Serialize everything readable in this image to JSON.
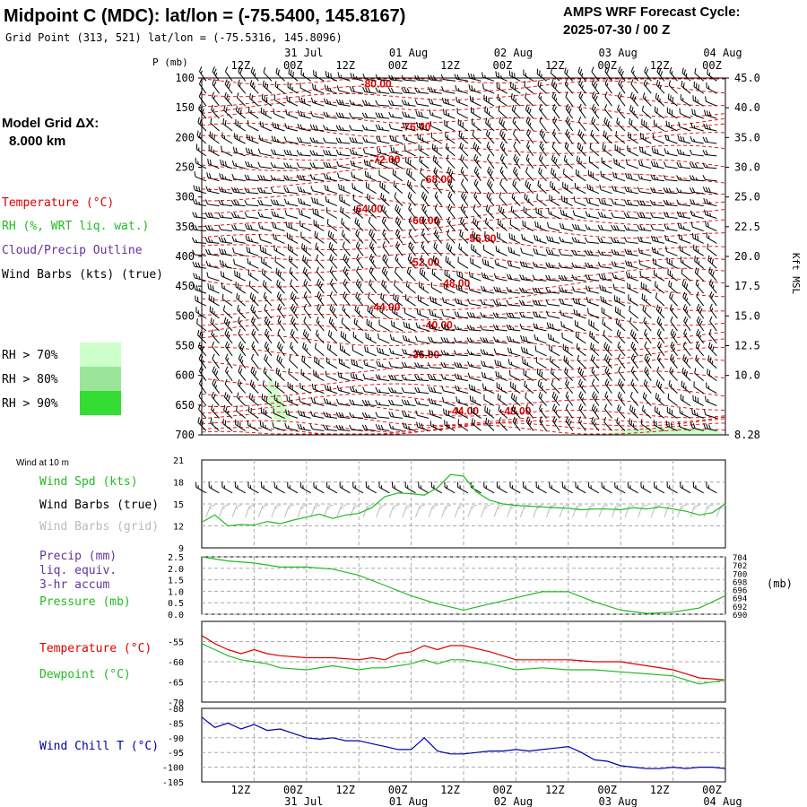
{
  "header": {
    "title": "Midpoint C (MDC):  lat/lon = (-75.5400, 145.8167)",
    "subtitle": "Grid Point (313, 521) lat/lon = (-75.5316, 145.8096)",
    "cycle_label": "AMPS WRF Forecast Cycle:",
    "cycle_value": "2025-07-30 / 00  Z"
  },
  "legend": {
    "model_grid_label": "Model Grid ΔX:",
    "model_grid_value": "8.000 km",
    "temperature": "Temperature (°C)",
    "rh": "RH (%, WRT liq. wat.)",
    "cloud": "Cloud/Precip Outline",
    "wind": "Wind Barbs (kts) (true)",
    "rh_levels": [
      {
        "label": "RH > 70%",
        "color": "#ccffcc"
      },
      {
        "label": "RH > 80%",
        "color": "#99e699"
      },
      {
        "label": "RH > 90%",
        "color": "#33dd33"
      }
    ]
  },
  "colors": {
    "temperature": "#dd0000",
    "dewpoint": "#22bb22",
    "cloud": "#663399",
    "windchill": "#0000aa",
    "grid": "#aaaaaa",
    "barb_grid": "#bbbbbb"
  },
  "time_axis": {
    "hours": [
      0,
      12,
      24,
      36,
      48,
      60,
      72,
      84,
      96,
      108,
      120
    ],
    "tick_labels": [
      "12Z",
      "00Z",
      "12Z",
      "00Z",
      "12Z",
      "00Z",
      "12Z",
      "00Z",
      "12Z",
      "00Z"
    ],
    "tick_hours": [
      12,
      24,
      36,
      48,
      60,
      72,
      84,
      96,
      108,
      120
    ],
    "date_labels": [
      "31 Jul",
      "01 Aug",
      "02 Aug",
      "03 Aug",
      "04 Aug"
    ],
    "date_hours": [
      24,
      48,
      72,
      96,
      120
    ]
  },
  "chart_data": [
    {
      "type": "line",
      "panel": "cross-section",
      "ylabel": "P (mb)",
      "right_label": "Kft MSL",
      "y_ticks": [
        100,
        150,
        200,
        250,
        300,
        350,
        400,
        450,
        500,
        550,
        600,
        650,
        700
      ],
      "ylim": [
        100,
        700
      ],
      "kft_ticks": [
        {
          "p": 100,
          "label": "45.0"
        },
        {
          "p": 150,
          "label": "40.0"
        },
        {
          "p": 200,
          "label": "35.0"
        },
        {
          "p": 250,
          "label": "30.0"
        },
        {
          "p": 300,
          "label": "25.0"
        },
        {
          "p": 350,
          "label": "22.5"
        },
        {
          "p": 400,
          "label": "20.0"
        },
        {
          "p": 450,
          "label": "17.5"
        },
        {
          "p": 500,
          "label": "15.0"
        },
        {
          "p": 550,
          "label": "12.5"
        },
        {
          "p": 600,
          "label": "10.0"
        },
        {
          "p": 700,
          "label": "8.28"
        }
      ],
      "temperature_labels": [
        {
          "text": "-80.00",
          "hour": 40,
          "p": 110
        },
        {
          "text": "-76.00",
          "hour": 49,
          "p": 182
        },
        {
          "text": "-72.00",
          "hour": 42,
          "p": 237
        },
        {
          "text": "-68.00",
          "hour": 54,
          "p": 270
        },
        {
          "text": "-64.00",
          "hour": 38,
          "p": 320
        },
        {
          "text": "-60.00",
          "hour": 51,
          "p": 340
        },
        {
          "text": "-56.00",
          "hour": 64,
          "p": 370
        },
        {
          "text": "-52.00",
          "hour": 51,
          "p": 410
        },
        {
          "text": "-48.00",
          "hour": 58,
          "p": 445
        },
        {
          "text": "-44.00",
          "hour": 42,
          "p": 485
        },
        {
          "text": "-40.00",
          "hour": 54,
          "p": 515
        },
        {
          "text": "-36.00",
          "hour": 51,
          "p": 565
        },
        {
          "text": "-44.00",
          "hour": 60,
          "p": 660
        },
        {
          "text": "-48.00",
          "hour": 72,
          "p": 660
        }
      ]
    },
    {
      "type": "line",
      "panel": "wind",
      "note": "Wind at 10 m",
      "labels": [
        "Wind Spd (kts)",
        "Wind Barbs (true)",
        "Wind Barbs (grid)"
      ],
      "y_ticks": [
        12,
        15,
        18,
        21
      ],
      "ylim": [
        9,
        21
      ],
      "series": [
        {
          "name": "Wind Spd (kts)",
          "x": [
            0,
            3,
            6,
            9,
            12,
            15,
            18,
            21,
            24,
            27,
            30,
            33,
            36,
            39,
            42,
            45,
            48,
            51,
            54,
            57,
            60,
            63,
            66,
            69,
            72,
            75,
            78,
            81,
            84,
            87,
            90,
            93,
            96,
            99,
            102,
            105,
            108,
            111,
            114,
            117,
            120
          ],
          "values": [
            12.5,
            13.5,
            12.0,
            12.2,
            12.1,
            12.6,
            12.3,
            12.8,
            13.2,
            13.6,
            13.0,
            13.5,
            13.7,
            14.5,
            16.0,
            16.5,
            16.4,
            16.2,
            17.2,
            19.0,
            18.8,
            16.6,
            15.5,
            15.0,
            14.8,
            14.7,
            14.6,
            14.5,
            14.4,
            14.2,
            14.3,
            14.3,
            14.2,
            14.5,
            14.3,
            14.6,
            14.3,
            14.0,
            13.5,
            13.8,
            15.0
          ]
        }
      ]
    },
    {
      "type": "line",
      "panel": "precip-pressure",
      "labels": [
        "Precip (mm)",
        "liq. equiv.",
        "3-hr accum",
        "Pressure (mb)"
      ],
      "y_ticks": [
        0.0,
        0.5,
        1.0,
        1.5,
        2.0,
        2.5
      ],
      "ylim": [
        0,
        2.5
      ],
      "right_ticks": [
        690,
        692,
        694,
        696,
        698,
        700,
        702,
        704
      ],
      "right_lim": [
        690,
        704
      ],
      "right_unit": "(mb)",
      "series": [
        {
          "name": "Pressure (mb)",
          "x": [
            0,
            6,
            12,
            18,
            24,
            30,
            36,
            42,
            48,
            54,
            60,
            66,
            72,
            78,
            84,
            90,
            96,
            102,
            108,
            114,
            120
          ],
          "values": [
            704.0,
            703.0,
            702.5,
            701.5,
            701.5,
            701.0,
            699.5,
            697.0,
            694.5,
            692.5,
            691.0,
            692.5,
            694.0,
            695.5,
            695.5,
            693.0,
            691.0,
            690.2,
            690.5,
            691.5,
            694.5
          ]
        }
      ]
    },
    {
      "type": "line",
      "panel": "temperature",
      "labels": [
        "Temperature (°C)",
        "Dewpoint (°C)"
      ],
      "y_ticks": [
        -55,
        -60,
        -65,
        -70
      ],
      "ylim": [
        -70,
        -50
      ],
      "series": [
        {
          "name": "Temperature (°C)",
          "x": [
            0,
            3,
            6,
            9,
            12,
            15,
            18,
            24,
            30,
            36,
            39,
            42,
            45,
            48,
            51,
            54,
            57,
            60,
            66,
            72,
            78,
            84,
            90,
            96,
            102,
            108,
            114,
            120
          ],
          "values": [
            -53.5,
            -55.5,
            -57.0,
            -58.0,
            -57.0,
            -58.0,
            -58.5,
            -59.0,
            -59.0,
            -59.5,
            -59.0,
            -59.5,
            -58.0,
            -57.5,
            -56.0,
            -57.0,
            -56.0,
            -56.0,
            -57.5,
            -59.5,
            -59.5,
            -59.5,
            -60.0,
            -60.0,
            -61.0,
            -62.0,
            -64.0,
            -64.5
          ]
        },
        {
          "name": "Dewpoint (°C)",
          "x": [
            0,
            3,
            6,
            9,
            12,
            15,
            18,
            24,
            30,
            36,
            39,
            42,
            45,
            48,
            51,
            54,
            57,
            60,
            66,
            72,
            78,
            84,
            90,
            96,
            102,
            108,
            114,
            120
          ],
          "values": [
            -55.5,
            -57.0,
            -58.5,
            -59.5,
            -60.0,
            -60.5,
            -61.5,
            -62.0,
            -61.0,
            -62.0,
            -61.5,
            -61.5,
            -61.0,
            -60.5,
            -59.5,
            -60.5,
            -59.5,
            -59.5,
            -60.5,
            -62.0,
            -61.5,
            -62.0,
            -62.0,
            -62.5,
            -63.0,
            -63.5,
            -65.5,
            -64.5
          ]
        }
      ]
    },
    {
      "type": "line",
      "panel": "windchill",
      "labels": [
        "Wind Chill T (°C)"
      ],
      "y_ticks": [
        -80,
        -85,
        -90,
        -95,
        -100,
        -105
      ],
      "ylim": [
        -105,
        -80
      ],
      "series": [
        {
          "name": "Wind Chill T (°C)",
          "x": [
            0,
            3,
            6,
            9,
            12,
            15,
            18,
            21,
            24,
            27,
            30,
            33,
            36,
            39,
            42,
            45,
            48,
            51,
            54,
            57,
            60,
            63,
            66,
            69,
            72,
            75,
            78,
            81,
            84,
            87,
            90,
            93,
            96,
            99,
            102,
            105,
            108,
            111,
            114,
            117,
            120
          ],
          "values": [
            -83.0,
            -86.5,
            -85.0,
            -87.0,
            -85.5,
            -87.5,
            -87.0,
            -88.5,
            -90.0,
            -90.5,
            -90.0,
            -91.0,
            -91.0,
            -92.0,
            -93.0,
            -94.0,
            -94.0,
            -90.0,
            -94.5,
            -95.5,
            -95.5,
            -95.0,
            -94.5,
            -94.5,
            -94.0,
            -94.5,
            -94.0,
            -93.5,
            -93.0,
            -95.0,
            -97.5,
            -98.0,
            -99.5,
            -100.0,
            -100.5,
            -100.5,
            -100.0,
            -100.5,
            -100.0,
            -100.0,
            -100.5
          ]
        }
      ]
    }
  ]
}
